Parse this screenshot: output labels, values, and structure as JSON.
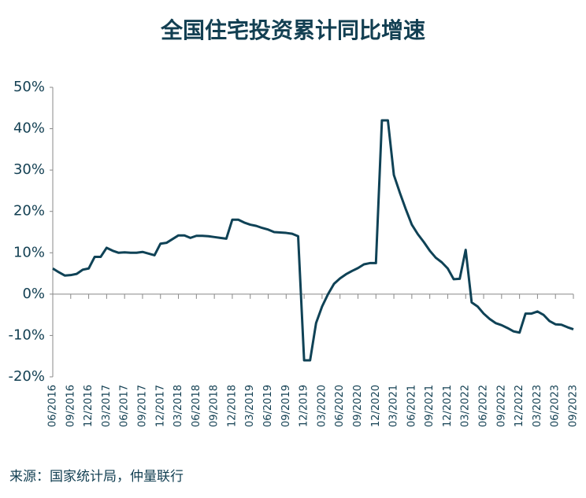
{
  "chart_data": {
    "type": "line",
    "title": "全国住宅投资累计同比增速",
    "source": "来源：国家统计局，仲量联行",
    "categories": [
      "06/2016",
      null,
      null,
      "09/2016",
      null,
      null,
      "12/2016",
      null,
      null,
      "03/2017",
      null,
      null,
      "06/2017",
      null,
      null,
      "09/2017",
      null,
      null,
      "12/2017",
      null,
      null,
      "03/2018",
      null,
      null,
      "06/2018",
      null,
      null,
      "09/2018",
      null,
      null,
      "12/2018",
      null,
      null,
      "03/2019",
      null,
      null,
      "06/2019",
      null,
      null,
      "09/2019",
      null,
      null,
      "12/2019",
      null,
      null,
      "03/2020",
      null,
      null,
      "06/2020",
      null,
      null,
      "09/2020",
      null,
      null,
      "12/2020",
      null,
      null,
      "03/2021",
      null,
      null,
      "06/2021",
      null,
      null,
      "09/2021",
      null,
      null,
      "12/2021",
      null,
      null,
      "03/2022",
      null,
      null,
      "06/2022",
      null,
      null,
      "09/2022",
      null,
      null,
      "12/2022",
      null,
      null,
      "03/2023",
      null,
      null,
      "06/2023",
      null,
      null,
      "09/2023"
    ],
    "series": [
      {
        "name": "住宅投资累计同比",
        "color": "#0f4256",
        "values": [
          6.2,
          5.3,
          4.5,
          4.6,
          4.9,
          5.9,
          6.2,
          9.0,
          9.0,
          11.2,
          10.5,
          10.0,
          10.1,
          10.0,
          10.0,
          10.2,
          9.8,
          9.4,
          12.2,
          12.4,
          13.3,
          14.2,
          14.2,
          13.6,
          14.1,
          14.1,
          14.0,
          13.8,
          13.6,
          13.4,
          18.0,
          18.0,
          17.3,
          16.8,
          16.5,
          16.0,
          15.6,
          15.0,
          14.9,
          14.8,
          14.6,
          14.0,
          -16.0,
          -16.0,
          -7.0,
          -3.0,
          0.0,
          2.5,
          3.8,
          4.8,
          5.6,
          6.3,
          7.2,
          7.5,
          7.5,
          42.0,
          42.0,
          28.8,
          24.5,
          20.5,
          16.8,
          14.5,
          12.6,
          10.5,
          8.8,
          7.7,
          6.2,
          3.6,
          3.7,
          10.7,
          -2.0,
          -3.0,
          -4.7,
          -6.0,
          -7.0,
          -7.5,
          -8.2,
          -9.0,
          -9.3,
          -4.7,
          -4.7,
          -4.2,
          -5.0,
          -6.5,
          -7.3,
          -7.4,
          -8.0,
          -8.5
        ]
      }
    ],
    "ylim": [
      -20,
      50
    ],
    "yticks": [
      {
        "value": -20,
        "label": "-20%"
      },
      {
        "value": -10,
        "label": "-10%"
      },
      {
        "value": 0,
        "label": "0%"
      },
      {
        "value": 10,
        "label": "10%"
      },
      {
        "value": 20,
        "label": "20%"
      },
      {
        "value": 30,
        "label": "30%"
      },
      {
        "value": 40,
        "label": "40%"
      },
      {
        "value": 50,
        "label": "50%"
      }
    ],
    "grid": false
  }
}
